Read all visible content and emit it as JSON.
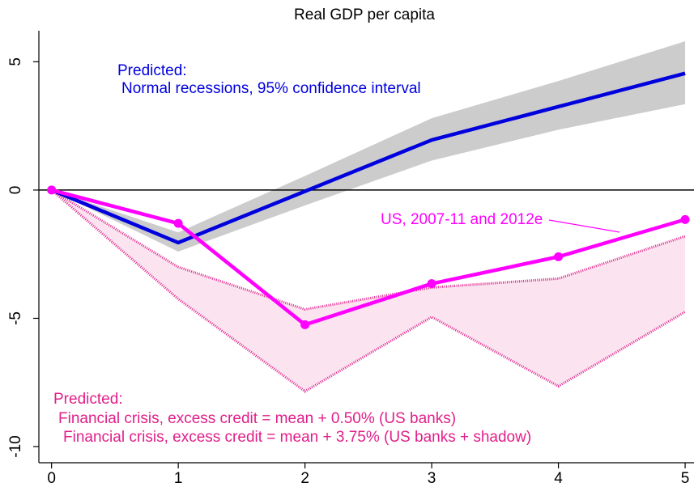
{
  "chart_data": {
    "type": "line",
    "title": "Real GDP per capita",
    "x": [
      0,
      1,
      2,
      3,
      4,
      5
    ],
    "xlim": [
      -0.1,
      5.07
    ],
    "xticks": [
      0,
      1,
      2,
      3,
      4,
      5
    ],
    "ylim": [
      -10.63,
      6.21
    ],
    "yticks": [
      5,
      0,
      -5,
      -10
    ],
    "bands": [
      {
        "color": "#cccccc",
        "edge": "none",
        "upper": [
          0,
          -1.65,
          0.55,
          2.8,
          4.25,
          5.8
        ],
        "lower": [
          0,
          -2.4,
          -0.6,
          1.15,
          2.35,
          3.35
        ]
      },
      {
        "color": "#fbe3f0",
        "edge": "#e0208a",
        "upper": [
          0,
          -3.0,
          -4.65,
          -3.8,
          -3.45,
          -1.8
        ],
        "lower": [
          0,
          -4.25,
          -7.85,
          -4.95,
          -7.65,
          -4.75
        ]
      }
    ],
    "series": [
      {
        "color": "#0000dd",
        "markers": false,
        "values": [
          0,
          -2.05,
          -0.05,
          1.95,
          3.25,
          4.55
        ]
      },
      {
        "color": "#ff00ff",
        "markers": true,
        "values": [
          0,
          -1.3,
          -5.25,
          -3.65,
          -2.6,
          -1.15
        ]
      }
    ],
    "annotations": [
      {
        "text": "Predicted:",
        "color": "#0000dd"
      },
      {
        "text": "Normal recessions, 95% confidence interval",
        "color": "#0000dd"
      },
      {
        "text": "US, 2007-11 and 2012e",
        "color": "#ff00ff"
      },
      {
        "text": "Predicted:",
        "color": "#e0208a"
      },
      {
        "text": "Financial crisis, excess credit = mean + 0.50% (US banks)",
        "color": "#e0208a"
      },
      {
        "text": "Financial crisis, excess credit = mean + 3.75% (US banks + shadow)",
        "color": "#e0208a"
      }
    ]
  }
}
